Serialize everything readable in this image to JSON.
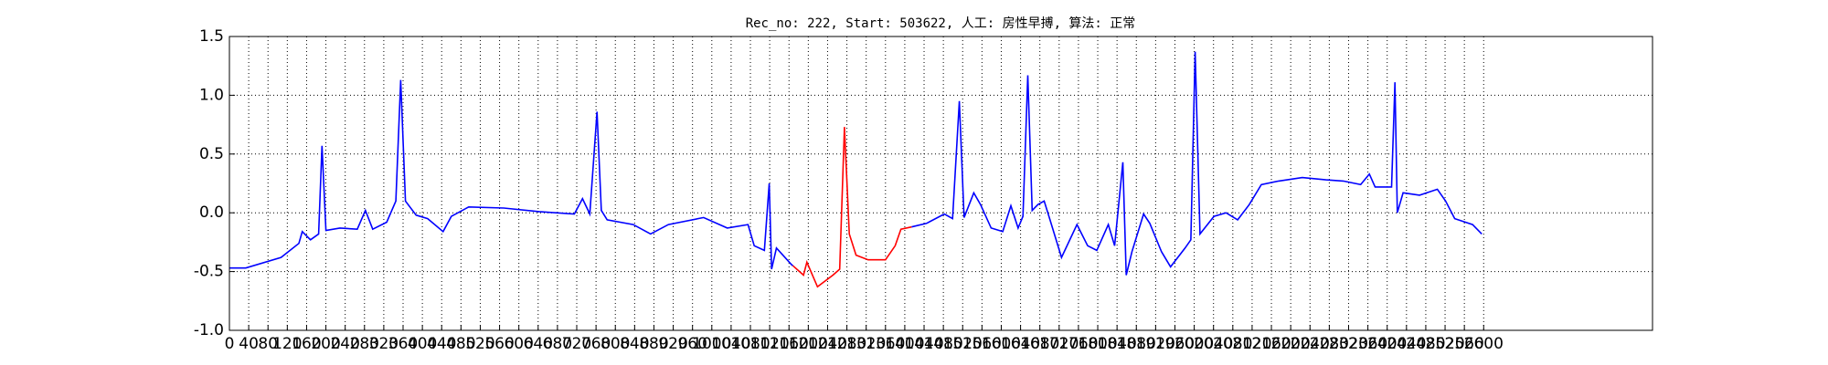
{
  "chart_data": {
    "type": "line",
    "title": "Rec_no: 222, Start: 503622, 人工: 房性早搏, 算法: 正常",
    "x": [
      0,
      34,
      107,
      144,
      151,
      168,
      185,
      192,
      200,
      229,
      265,
      282,
      297,
      326,
      345,
      355,
      365,
      387,
      411,
      443,
      460,
      496,
      569,
      642,
      715,
      732,
      747,
      762,
      771,
      783,
      837,
      873,
      910,
      983,
      1032,
      1075,
      1088,
      1109,
      1119,
      1124,
      1134,
      1165,
      1168,
      1190,
      1197,
      1219,
      1251,
      1265,
      1275,
      1285,
      1299,
      1324,
      1360,
      1380,
      1392,
      1414,
      1445,
      1482,
      1499,
      1513,
      1523,
      1543,
      1557,
      1579,
      1603,
      1620,
      1635,
      1645,
      1655,
      1664,
      1676,
      1689,
      1701,
      1725,
      1757,
      1779,
      1798,
      1822,
      1835,
      1852,
      1859,
      1871,
      1895,
      1908,
      1932,
      1951,
      1981,
      1993,
      2002,
      2012,
      2041,
      2066,
      2090,
      2114,
      2139,
      2175,
      2224,
      2273,
      2309,
      2345,
      2363,
      2375,
      2409,
      2416,
      2421,
      2433,
      2467,
      2504,
      2521,
      2540,
      2577,
      2596
    ],
    "series": [
      {
        "color": "#0000ff",
        "values": [
          -0.47,
          -0.47,
          -0.38,
          -0.26,
          -0.16,
          -0.23,
          -0.18,
          0.57,
          -0.15,
          -0.13,
          -0.14,
          0.02,
          -0.14,
          -0.08,
          0.1,
          1.13,
          0.1,
          -0.02,
          -0.05,
          -0.16,
          -0.03,
          0.05,
          0.04,
          0.01,
          -0.01,
          0.12,
          -0.01,
          0.86,
          0.02,
          -0.06,
          -0.1,
          -0.18,
          -0.1,
          -0.04,
          -0.13,
          -0.1,
          -0.28,
          -0.32,
          0.25,
          -0.48,
          -0.3,
          -0.44,
          -0.45,
          null,
          null,
          null,
          null,
          null,
          null,
          null,
          null,
          null,
          null,
          null,
          null,
          -0.12,
          -0.09,
          -0.01,
          -0.05,
          0.95,
          -0.04,
          0.17,
          0.07,
          -0.13,
          -0.16,
          0.06,
          -0.13,
          -0.03,
          1.17,
          0.02,
          0.07,
          0.1,
          -0.06,
          -0.38,
          -0.1,
          -0.28,
          -0.32,
          -0.1,
          -0.28,
          0.43,
          -0.53,
          -0.33,
          -0.01,
          -0.09,
          -0.33,
          -0.46,
          -0.3,
          -0.23,
          1.37,
          -0.18,
          -0.03,
          0,
          -0.06,
          0.07,
          0.24,
          0.27,
          0.3,
          0.28,
          0.27,
          0.24,
          0.33,
          0.22,
          0.22,
          1.11,
          0,
          0.17,
          0.15,
          0.2,
          0.1,
          -0.05,
          -0.1,
          -0.18
        ]
      },
      {
        "color": "#ff0000",
        "values": [
          null,
          null,
          null,
          null,
          null,
          null,
          null,
          null,
          null,
          null,
          null,
          null,
          null,
          null,
          null,
          null,
          null,
          null,
          null,
          null,
          null,
          null,
          null,
          null,
          null,
          null,
          null,
          null,
          null,
          null,
          null,
          null,
          null,
          null,
          null,
          null,
          null,
          null,
          null,
          null,
          null,
          null,
          -0.45,
          -0.53,
          -0.42,
          -0.63,
          -0.53,
          -0.48,
          0.73,
          -0.18,
          -0.36,
          -0.4,
          -0.4,
          -0.28,
          -0.14,
          -0.12,
          null,
          null,
          null,
          null,
          null,
          null,
          null,
          null,
          null,
          null,
          null,
          null,
          null,
          null,
          null,
          null,
          null,
          null,
          null,
          null,
          null,
          null,
          null,
          null,
          null,
          null,
          null,
          null,
          null,
          null,
          null,
          null,
          null,
          null,
          null,
          null,
          null,
          null,
          null,
          null,
          null,
          null,
          null,
          null,
          null,
          null,
          null,
          null,
          null,
          null,
          null,
          null,
          null,
          null,
          null,
          null
        ]
      }
    ],
    "xlim": [
      0,
      2950
    ],
    "xticks": [
      0,
      40,
      80,
      120,
      160,
      200,
      240,
      280,
      320,
      360,
      400,
      440,
      480,
      520,
      560,
      600,
      640,
      680,
      720,
      760,
      800,
      840,
      880,
      920,
      960,
      1000,
      1040,
      1080,
      1120,
      1160,
      1200,
      1240,
      1280,
      1320,
      1360,
      1400,
      1440,
      1480,
      1520,
      1560,
      1600,
      1640,
      1680,
      1720,
      1760,
      1800,
      1840,
      1880,
      1920,
      1960,
      2000,
      2040,
      2080,
      2120,
      2160,
      2200,
      2240,
      2280,
      2320,
      2360,
      2400,
      2440,
      2480,
      2520,
      2560,
      2600
    ],
    "ylim": [
      -1,
      1.5
    ],
    "yticks": [
      {
        "value": -1,
        "label": "-1.0"
      },
      -0.5,
      {
        "value": 0,
        "label": "0.0"
      },
      0.5,
      {
        "value": 1,
        "label": "1.0"
      },
      1.5
    ],
    "grid": true
  }
}
